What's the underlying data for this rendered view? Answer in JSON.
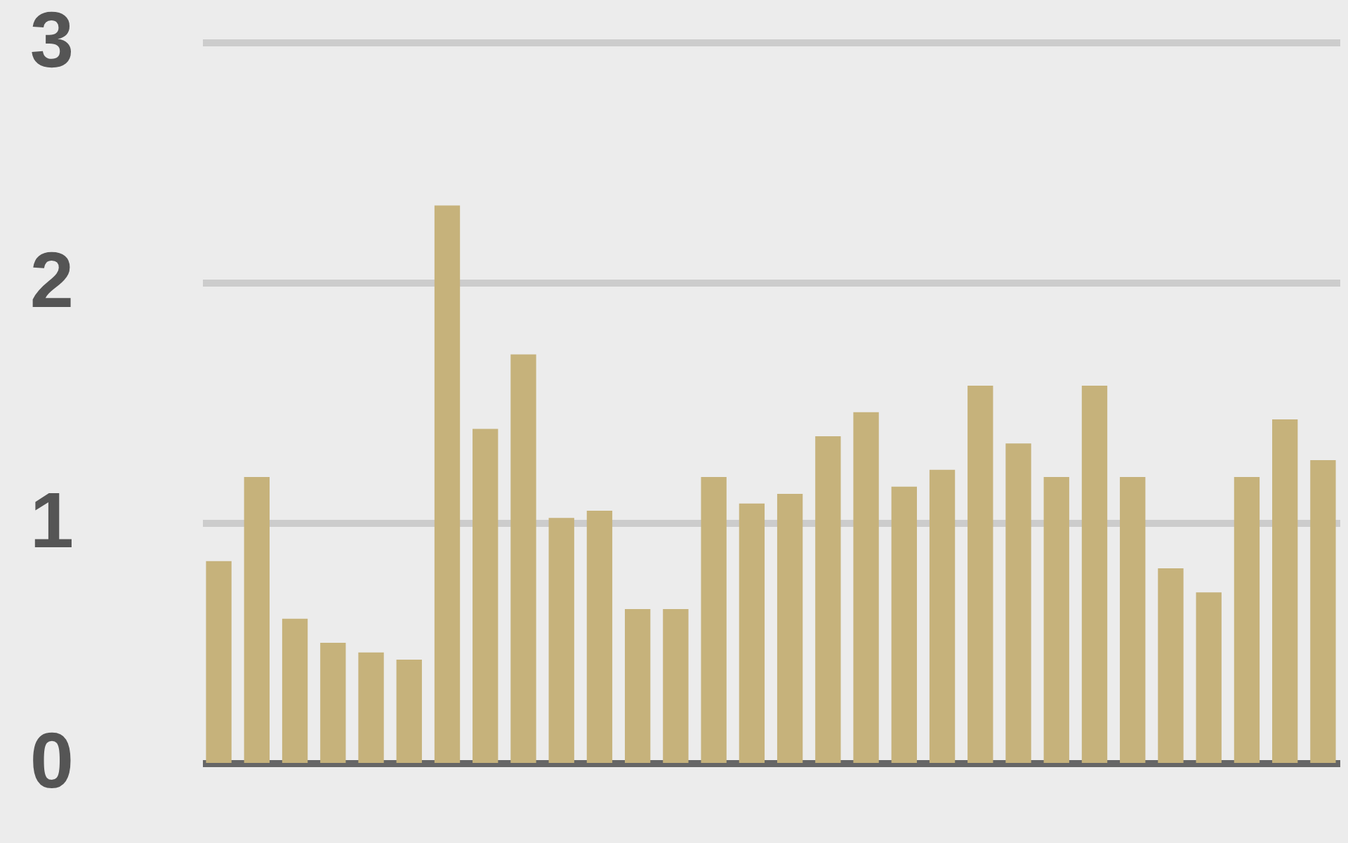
{
  "chart_data": {
    "type": "bar",
    "categories": [
      null,
      null,
      null,
      null,
      null,
      null,
      null,
      null,
      null,
      null,
      null,
      null,
      null,
      null,
      null,
      null,
      null,
      null,
      null,
      null,
      null,
      null,
      null,
      null,
      null,
      null,
      null,
      null,
      null,
      null
    ],
    "values": [
      0.84,
      1.19,
      0.6,
      0.5,
      0.46,
      0.43,
      2.32,
      1.39,
      1.7,
      1.02,
      1.05,
      0.64,
      0.64,
      1.19,
      1.08,
      1.12,
      1.36,
      1.46,
      1.15,
      1.22,
      1.57,
      1.33,
      1.19,
      1.57,
      1.19,
      0.81,
      0.71,
      1.19,
      1.43,
      1.26
    ],
    "color": "#c6b27b",
    "ylim": [
      0,
      3
    ],
    "yticks": [
      0,
      1,
      2,
      3
    ],
    "grid": "y",
    "tick_labels": "y"
  }
}
